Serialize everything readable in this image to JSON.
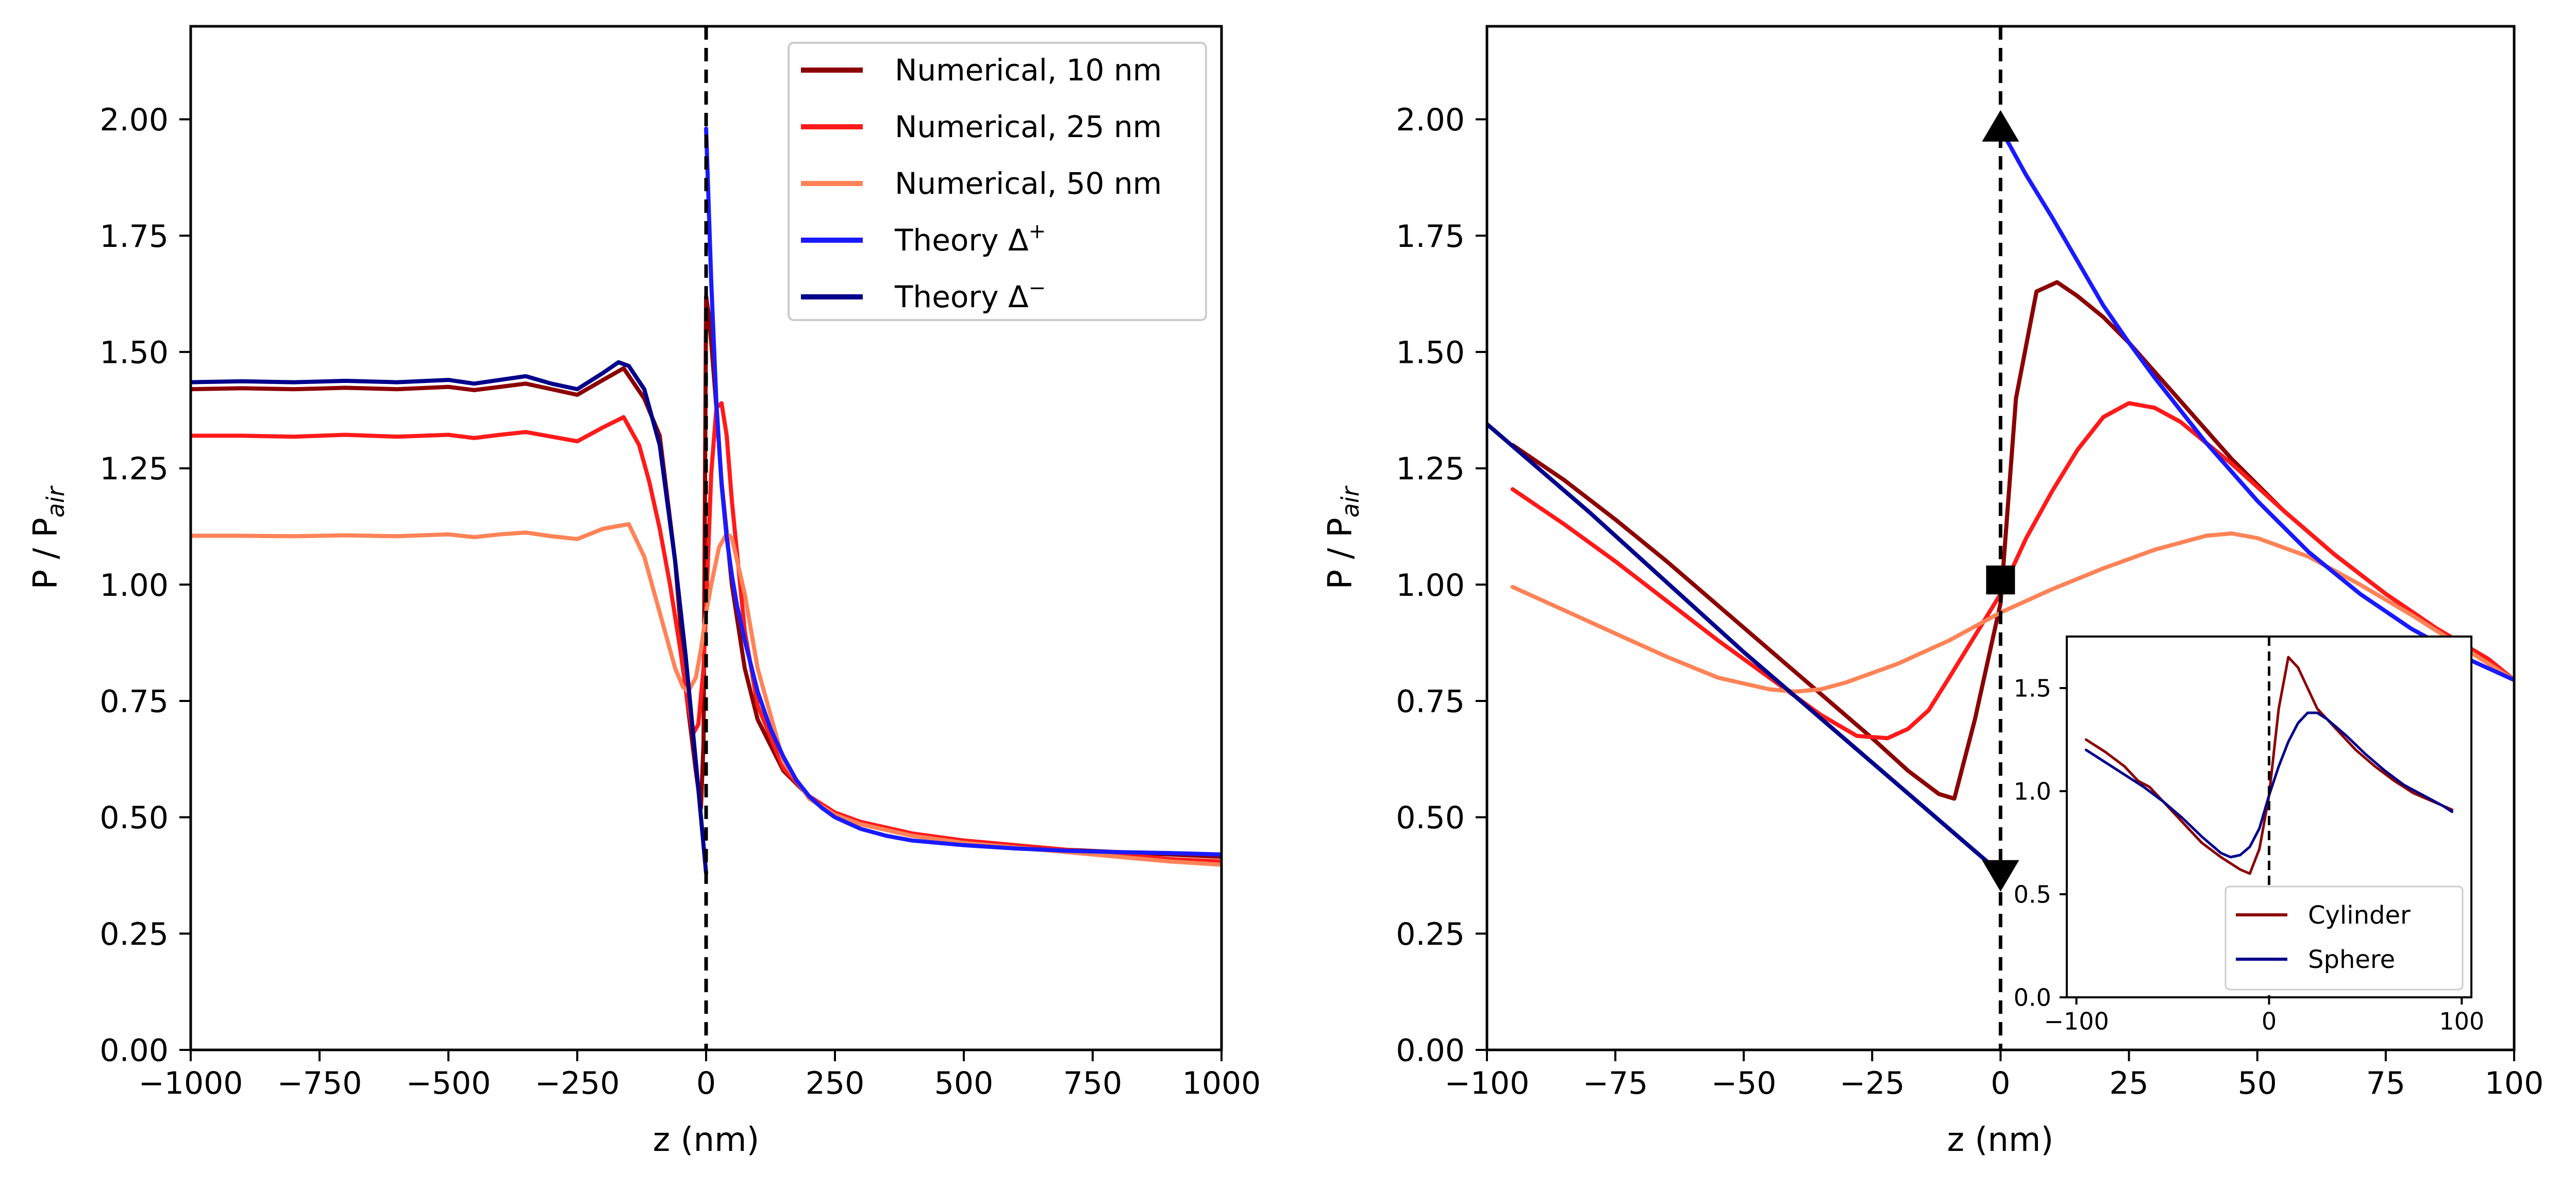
{
  "colors": {
    "num10": "#8b0000",
    "num25": "#ff1a1a",
    "num50": "#ff8357",
    "thPlus": "#1a1aff",
    "thMinus": "#00008b",
    "cylinder": "#8b0000",
    "sphere": "#00008b",
    "marker": "#000000"
  },
  "chart_data": [
    {
      "type": "line",
      "xlabel": "z (nm)",
      "ylabel": "P / P_air",
      "ylabel_main": "P / P",
      "ylabel_sub": "air",
      "xlim": [
        -1000,
        1000
      ],
      "ylim": [
        0,
        2.2
      ],
      "xticks": [
        -1000,
        -750,
        -500,
        -250,
        0,
        250,
        500,
        750,
        1000
      ],
      "xtick_labels": [
        "−1000",
        "−750",
        "−500",
        "−250",
        "0",
        "250",
        "500",
        "750",
        "1000"
      ],
      "yticks": [
        0,
        0.25,
        0.5,
        0.75,
        1.0,
        1.25,
        1.5,
        1.75,
        2.0
      ],
      "ytick_labels": [
        "0.00",
        "0.25",
        "0.50",
        "0.75",
        "1.00",
        "1.25",
        "1.50",
        "1.75",
        "2.00"
      ],
      "interface_line": 0,
      "legend": {
        "position": "top-right",
        "entries": [
          {
            "label": "Numerical, 10 nm",
            "series": 0
          },
          {
            "label": "Numerical, 25 nm",
            "series": 1
          },
          {
            "label": "Numerical, 50 nm",
            "series": 2
          },
          {
            "label": "Theory Δ",
            "sup": "+",
            "series": 3
          },
          {
            "label": "Theory Δ",
            "sup": "−",
            "series": 4
          }
        ]
      },
      "series": [
        {
          "name": "Numerical, 10 nm",
          "color_key": "num10",
          "x": [
            -1000,
            -900,
            -800,
            -700,
            -600,
            -500,
            -450,
            -400,
            -350,
            -300,
            -250,
            -200,
            -160,
            -120,
            -90,
            -60,
            -40,
            -20,
            -10,
            -5,
            0,
            5,
            10,
            20,
            30,
            50,
            75,
            100,
            150,
            200,
            250,
            300,
            400,
            500,
            600,
            700,
            800,
            900,
            1000
          ],
          "y": [
            1.42,
            1.422,
            1.42,
            1.423,
            1.42,
            1.425,
            1.418,
            1.425,
            1.432,
            1.42,
            1.408,
            1.44,
            1.465,
            1.4,
            1.32,
            1.05,
            0.78,
            0.6,
            0.52,
            0.66,
            1.62,
            1.58,
            1.52,
            1.38,
            1.22,
            1.0,
            0.82,
            0.71,
            0.6,
            0.545,
            0.51,
            0.49,
            0.465,
            0.45,
            0.44,
            0.43,
            0.425,
            0.42,
            0.415
          ]
        },
        {
          "name": "Numerical, 25 nm",
          "color_key": "num25",
          "x": [
            -1000,
            -900,
            -800,
            -700,
            -600,
            -500,
            -450,
            -400,
            -350,
            -300,
            -250,
            -200,
            -160,
            -130,
            -110,
            -90,
            -70,
            -50,
            -35,
            -25,
            -15,
            -5,
            0,
            10,
            20,
            30,
            40,
            50,
            75,
            100,
            150,
            200,
            250,
            300,
            400,
            500,
            600,
            700,
            800,
            900,
            1000
          ],
          "y": [
            1.32,
            1.32,
            1.318,
            1.322,
            1.318,
            1.322,
            1.315,
            1.322,
            1.328,
            1.318,
            1.308,
            1.338,
            1.36,
            1.3,
            1.22,
            1.12,
            1.0,
            0.86,
            0.74,
            0.68,
            0.7,
            0.82,
            0.95,
            1.24,
            1.38,
            1.39,
            1.32,
            1.18,
            0.9,
            0.74,
            0.605,
            0.545,
            0.51,
            0.49,
            0.465,
            0.45,
            0.44,
            0.43,
            0.42,
            0.41,
            0.405
          ]
        },
        {
          "name": "Numerical, 50 nm",
          "color_key": "num50",
          "x": [
            -1000,
            -900,
            -800,
            -700,
            -600,
            -500,
            -450,
            -400,
            -350,
            -300,
            -250,
            -200,
            -150,
            -120,
            -100,
            -80,
            -60,
            -45,
            -35,
            -20,
            -10,
            0,
            10,
            25,
            40,
            50,
            75,
            100,
            150,
            200,
            250,
            300,
            400,
            500,
            600,
            700,
            800,
            900,
            1000
          ],
          "y": [
            1.105,
            1.105,
            1.104,
            1.106,
            1.104,
            1.108,
            1.102,
            1.108,
            1.112,
            1.104,
            1.098,
            1.12,
            1.13,
            1.06,
            0.98,
            0.9,
            0.82,
            0.78,
            0.77,
            0.8,
            0.86,
            0.94,
            1.0,
            1.08,
            1.11,
            1.1,
            0.98,
            0.82,
            0.62,
            0.54,
            0.505,
            0.485,
            0.46,
            0.445,
            0.435,
            0.425,
            0.415,
            0.405,
            0.398
          ]
        },
        {
          "name": "Theory Δ+",
          "color_key": "thPlus",
          "x": [
            0,
            10,
            20,
            30,
            40,
            50,
            60,
            75,
            100,
            125,
            150,
            175,
            200,
            225,
            250,
            300,
            350,
            400,
            500,
            600,
            700,
            800,
            900,
            1000
          ],
          "y": [
            1.98,
            1.65,
            1.39,
            1.215,
            1.1,
            1.02,
            0.955,
            0.88,
            0.77,
            0.69,
            0.63,
            0.58,
            0.545,
            0.52,
            0.5,
            0.475,
            0.46,
            0.45,
            0.44,
            0.433,
            0.428,
            0.425,
            0.423,
            0.42
          ]
        },
        {
          "name": "Theory Δ−",
          "color_key": "thMinus",
          "x": [
            -1000,
            -900,
            -800,
            -700,
            -600,
            -500,
            -450,
            -400,
            -350,
            -300,
            -250,
            -200,
            -170,
            -150,
            -120,
            -90,
            -60,
            -40,
            -20,
            0
          ],
          "y": [
            1.435,
            1.437,
            1.435,
            1.438,
            1.435,
            1.44,
            1.432,
            1.44,
            1.448,
            1.432,
            1.42,
            1.455,
            1.478,
            1.47,
            1.42,
            1.3,
            1.05,
            0.85,
            0.62,
            0.38
          ]
        }
      ]
    },
    {
      "type": "line",
      "xlabel": "z (nm)",
      "ylabel": "P / P_air",
      "ylabel_main": "P / P",
      "ylabel_sub": "air",
      "xlim": [
        -100,
        100
      ],
      "ylim": [
        0,
        2.2
      ],
      "xticks": [
        -100,
        -75,
        -50,
        -25,
        0,
        25,
        50,
        75,
        100
      ],
      "xtick_labels": [
        "−100",
        "−75",
        "−50",
        "−25",
        "0",
        "25",
        "50",
        "75",
        "100"
      ],
      "yticks": [
        0,
        0.25,
        0.5,
        0.75,
        1.0,
        1.25,
        1.5,
        1.75,
        2.0
      ],
      "ytick_labels": [
        "0.00",
        "0.25",
        "0.50",
        "0.75",
        "1.00",
        "1.25",
        "1.50",
        "1.75",
        "2.00"
      ],
      "interface_line": 0,
      "markers": [
        {
          "shape": "triangle-up",
          "x": 0,
          "y": 1.98
        },
        {
          "shape": "square",
          "x": 0,
          "y": 1.01
        },
        {
          "shape": "triangle-down",
          "x": 0,
          "y": 0.38
        }
      ],
      "series": [
        {
          "name": "Numerical, 10 nm",
          "color_key": "num10",
          "x": [
            -95,
            -85,
            -75,
            -65,
            -55,
            -45,
            -35,
            -25,
            -18,
            -12,
            -9,
            -5,
            0,
            3,
            7,
            11,
            15,
            20,
            25,
            35,
            45,
            55,
            65,
            75,
            85,
            95,
            100
          ],
          "y": [
            1.3,
            1.225,
            1.14,
            1.05,
            0.955,
            0.86,
            0.765,
            0.67,
            0.6,
            0.55,
            0.54,
            0.71,
            0.96,
            1.4,
            1.63,
            1.65,
            1.62,
            1.575,
            1.52,
            1.395,
            1.27,
            1.16,
            1.065,
            0.98,
            0.905,
            0.84,
            0.795
          ]
        },
        {
          "name": "Numerical, 25 nm",
          "color_key": "num25",
          "x": [
            -95,
            -85,
            -75,
            -65,
            -55,
            -45,
            -35,
            -28,
            -22,
            -18,
            -14,
            -10,
            -5,
            0,
            5,
            10,
            15,
            20,
            25,
            30,
            35,
            45,
            55,
            65,
            75,
            85,
            95,
            100
          ],
          "y": [
            1.205,
            1.13,
            1.05,
            0.965,
            0.88,
            0.8,
            0.72,
            0.675,
            0.67,
            0.69,
            0.73,
            0.8,
            0.89,
            0.98,
            1.1,
            1.2,
            1.29,
            1.36,
            1.39,
            1.38,
            1.35,
            1.26,
            1.16,
            1.065,
            0.98,
            0.905,
            0.84,
            0.795
          ]
        },
        {
          "name": "Numerical, 50 nm",
          "color_key": "num50",
          "x": [
            -95,
            -85,
            -75,
            -65,
            -55,
            -45,
            -40,
            -35,
            -30,
            -20,
            -10,
            0,
            10,
            20,
            30,
            40,
            45,
            50,
            60,
            70,
            80,
            90,
            100
          ],
          "y": [
            0.995,
            0.945,
            0.895,
            0.845,
            0.8,
            0.775,
            0.77,
            0.775,
            0.79,
            0.83,
            0.88,
            0.94,
            0.99,
            1.035,
            1.075,
            1.105,
            1.11,
            1.1,
            1.06,
            1.0,
            0.935,
            0.865,
            0.795
          ]
        },
        {
          "name": "Theory Δ+",
          "color_key": "thPlus",
          "x": [
            0,
            5,
            10,
            15,
            20,
            25,
            30,
            40,
            50,
            60,
            70,
            80,
            90,
            100
          ],
          "y": [
            1.98,
            1.88,
            1.79,
            1.695,
            1.6,
            1.52,
            1.445,
            1.305,
            1.18,
            1.07,
            0.98,
            0.905,
            0.845,
            0.795
          ]
        },
        {
          "name": "Theory Δ−",
          "color_key": "thMinus",
          "x": [
            -100,
            -90,
            -80,
            -70,
            -60,
            -50,
            -40,
            -30,
            -20,
            -10,
            0
          ],
          "y": [
            1.345,
            1.25,
            1.155,
            1.055,
            0.955,
            0.855,
            0.76,
            0.665,
            0.57,
            0.475,
            0.38
          ]
        }
      ],
      "inset": {
        "xlim": [
          -105,
          105
        ],
        "ylim": [
          0,
          1.75
        ],
        "xticks": [
          -100,
          0,
          100
        ],
        "xtick_labels": [
          "−100",
          "0",
          "100"
        ],
        "yticks": [
          0,
          0.5,
          1.0,
          1.5
        ],
        "ytick_labels": [
          "0.0",
          "0.5",
          "1.0",
          "1.5"
        ],
        "interface_line": 0,
        "legend": {
          "position": "bottom-right",
          "entries": [
            {
              "label": "Cylinder",
              "series": 0
            },
            {
              "label": "Sphere",
              "series": 1
            }
          ]
        },
        "series": [
          {
            "name": "Cylinder",
            "color_key": "cylinder",
            "x": [
              -95,
              -85,
              -75,
              -68,
              -62,
              -55,
              -45,
              -35,
              -25,
              -20,
              -15,
              -10,
              -5,
              0,
              5,
              10,
              15,
              20,
              25,
              35,
              45,
              55,
              65,
              75,
              85,
              95
            ],
            "y": [
              1.25,
              1.19,
              1.12,
              1.05,
              1.02,
              0.95,
              0.85,
              0.75,
              0.68,
              0.65,
              0.62,
              0.6,
              0.72,
              0.98,
              1.4,
              1.65,
              1.6,
              1.5,
              1.4,
              1.3,
              1.2,
              1.12,
              1.05,
              0.99,
              0.95,
              0.91
            ]
          },
          {
            "name": "Sphere",
            "color_key": "sphere",
            "x": [
              -95,
              -85,
              -75,
              -65,
              -55,
              -45,
              -35,
              -25,
              -20,
              -15,
              -10,
              -5,
              0,
              5,
              10,
              15,
              20,
              25,
              30,
              40,
              50,
              60,
              70,
              80,
              90,
              95
            ],
            "y": [
              1.2,
              1.14,
              1.08,
              1.02,
              0.95,
              0.87,
              0.78,
              0.7,
              0.68,
              0.69,
              0.73,
              0.82,
              0.98,
              1.12,
              1.24,
              1.33,
              1.38,
              1.38,
              1.35,
              1.27,
              1.18,
              1.1,
              1.03,
              0.98,
              0.93,
              0.9
            ]
          }
        ]
      }
    }
  ]
}
